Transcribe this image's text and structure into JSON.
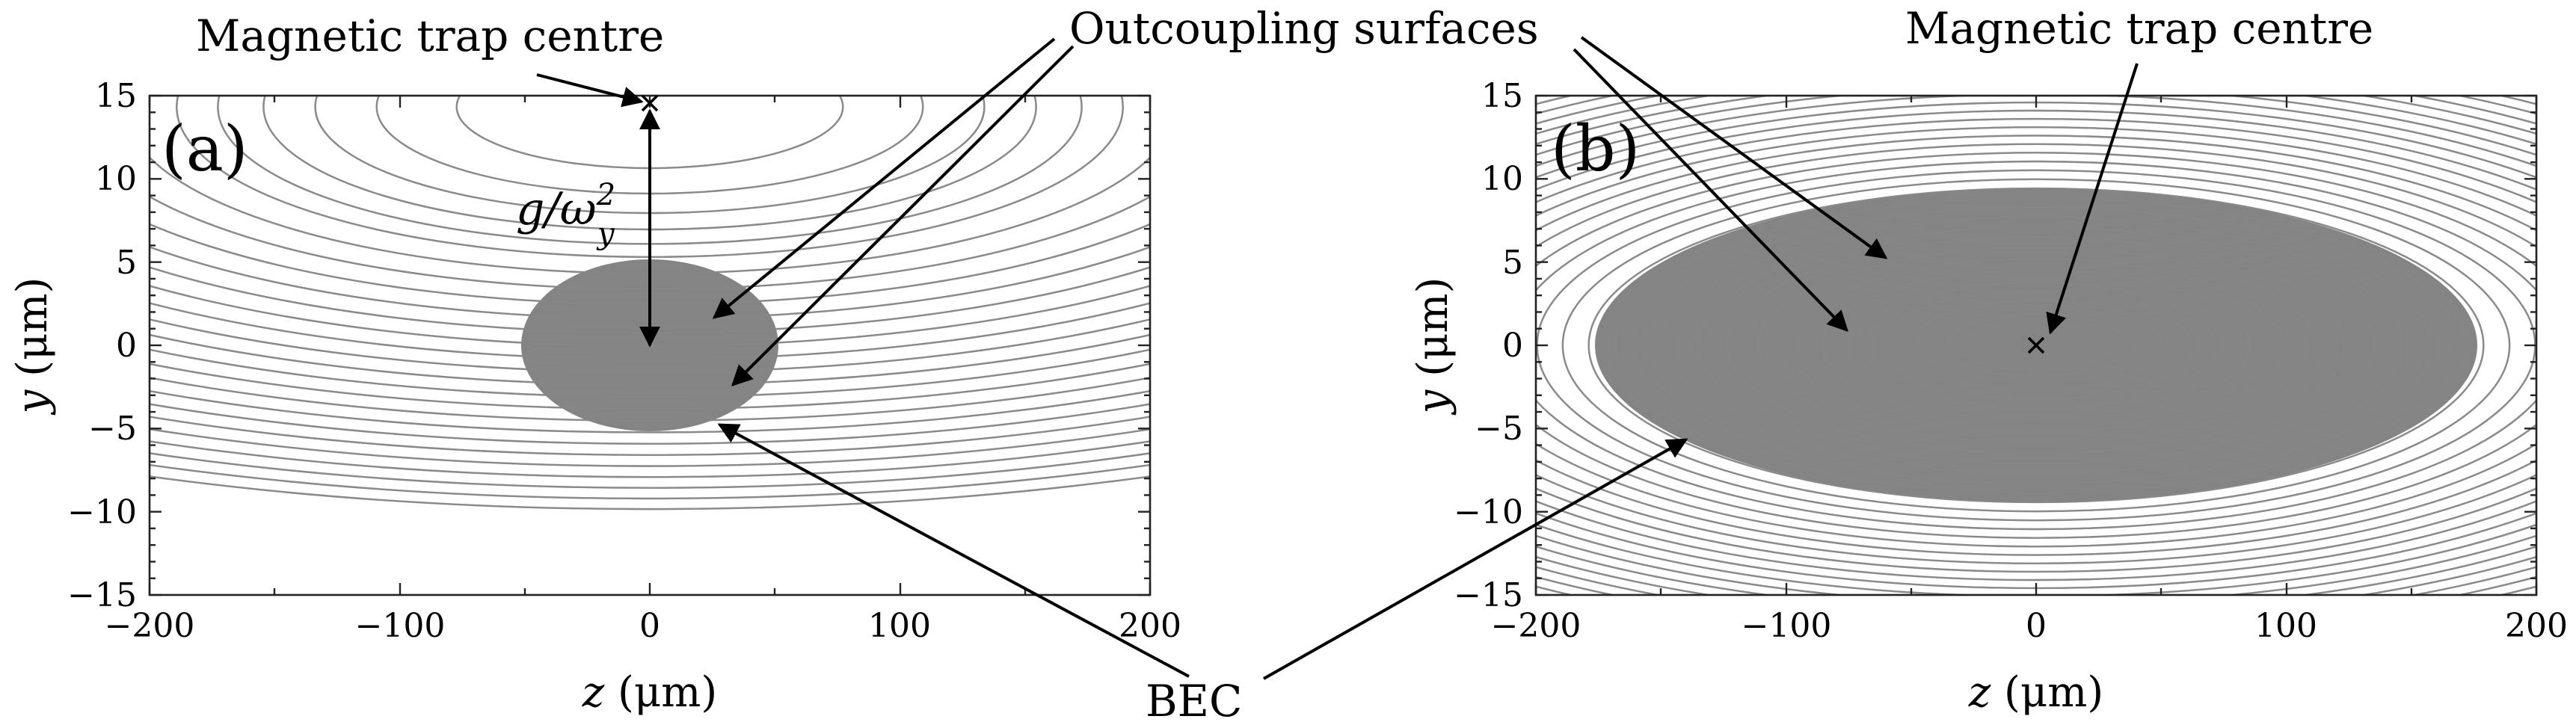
{
  "annotations": {
    "trap_centre_a": "Magnetic trap centre",
    "trap_centre_b": "Magnetic trap centre",
    "outcoupling": "Outcoupling surfaces",
    "bec": "BEC",
    "gravity_sag": "g/ω",
    "gravity_sup": "2",
    "gravity_sub": "y"
  },
  "panels": [
    {
      "label": "(a)",
      "xlabel_var": "z",
      "xlabel_unit": " (μm)",
      "ylabel_var": "y",
      "ylabel_unit": " (μm)",
      "x_ticks": [
        "−200",
        "−100",
        "0",
        "100",
        "200"
      ],
      "y_ticks": [
        "15",
        "10",
        "5",
        "0",
        "−5",
        "−10",
        "−15"
      ]
    },
    {
      "label": "(b)",
      "xlabel_var": "z",
      "xlabel_unit": " (μm)",
      "ylabel_var": "y",
      "ylabel_unit": " (μm)",
      "x_ticks": [
        "−200",
        "−100",
        "0",
        "100",
        "200"
      ],
      "y_ticks": [
        "15",
        "10",
        "5",
        "0",
        "−5",
        "−10",
        "−15"
      ]
    }
  ],
  "colors": {
    "bec_fill": "#808080",
    "contour": "#8a8a8a",
    "frame": "#222222"
  }
}
